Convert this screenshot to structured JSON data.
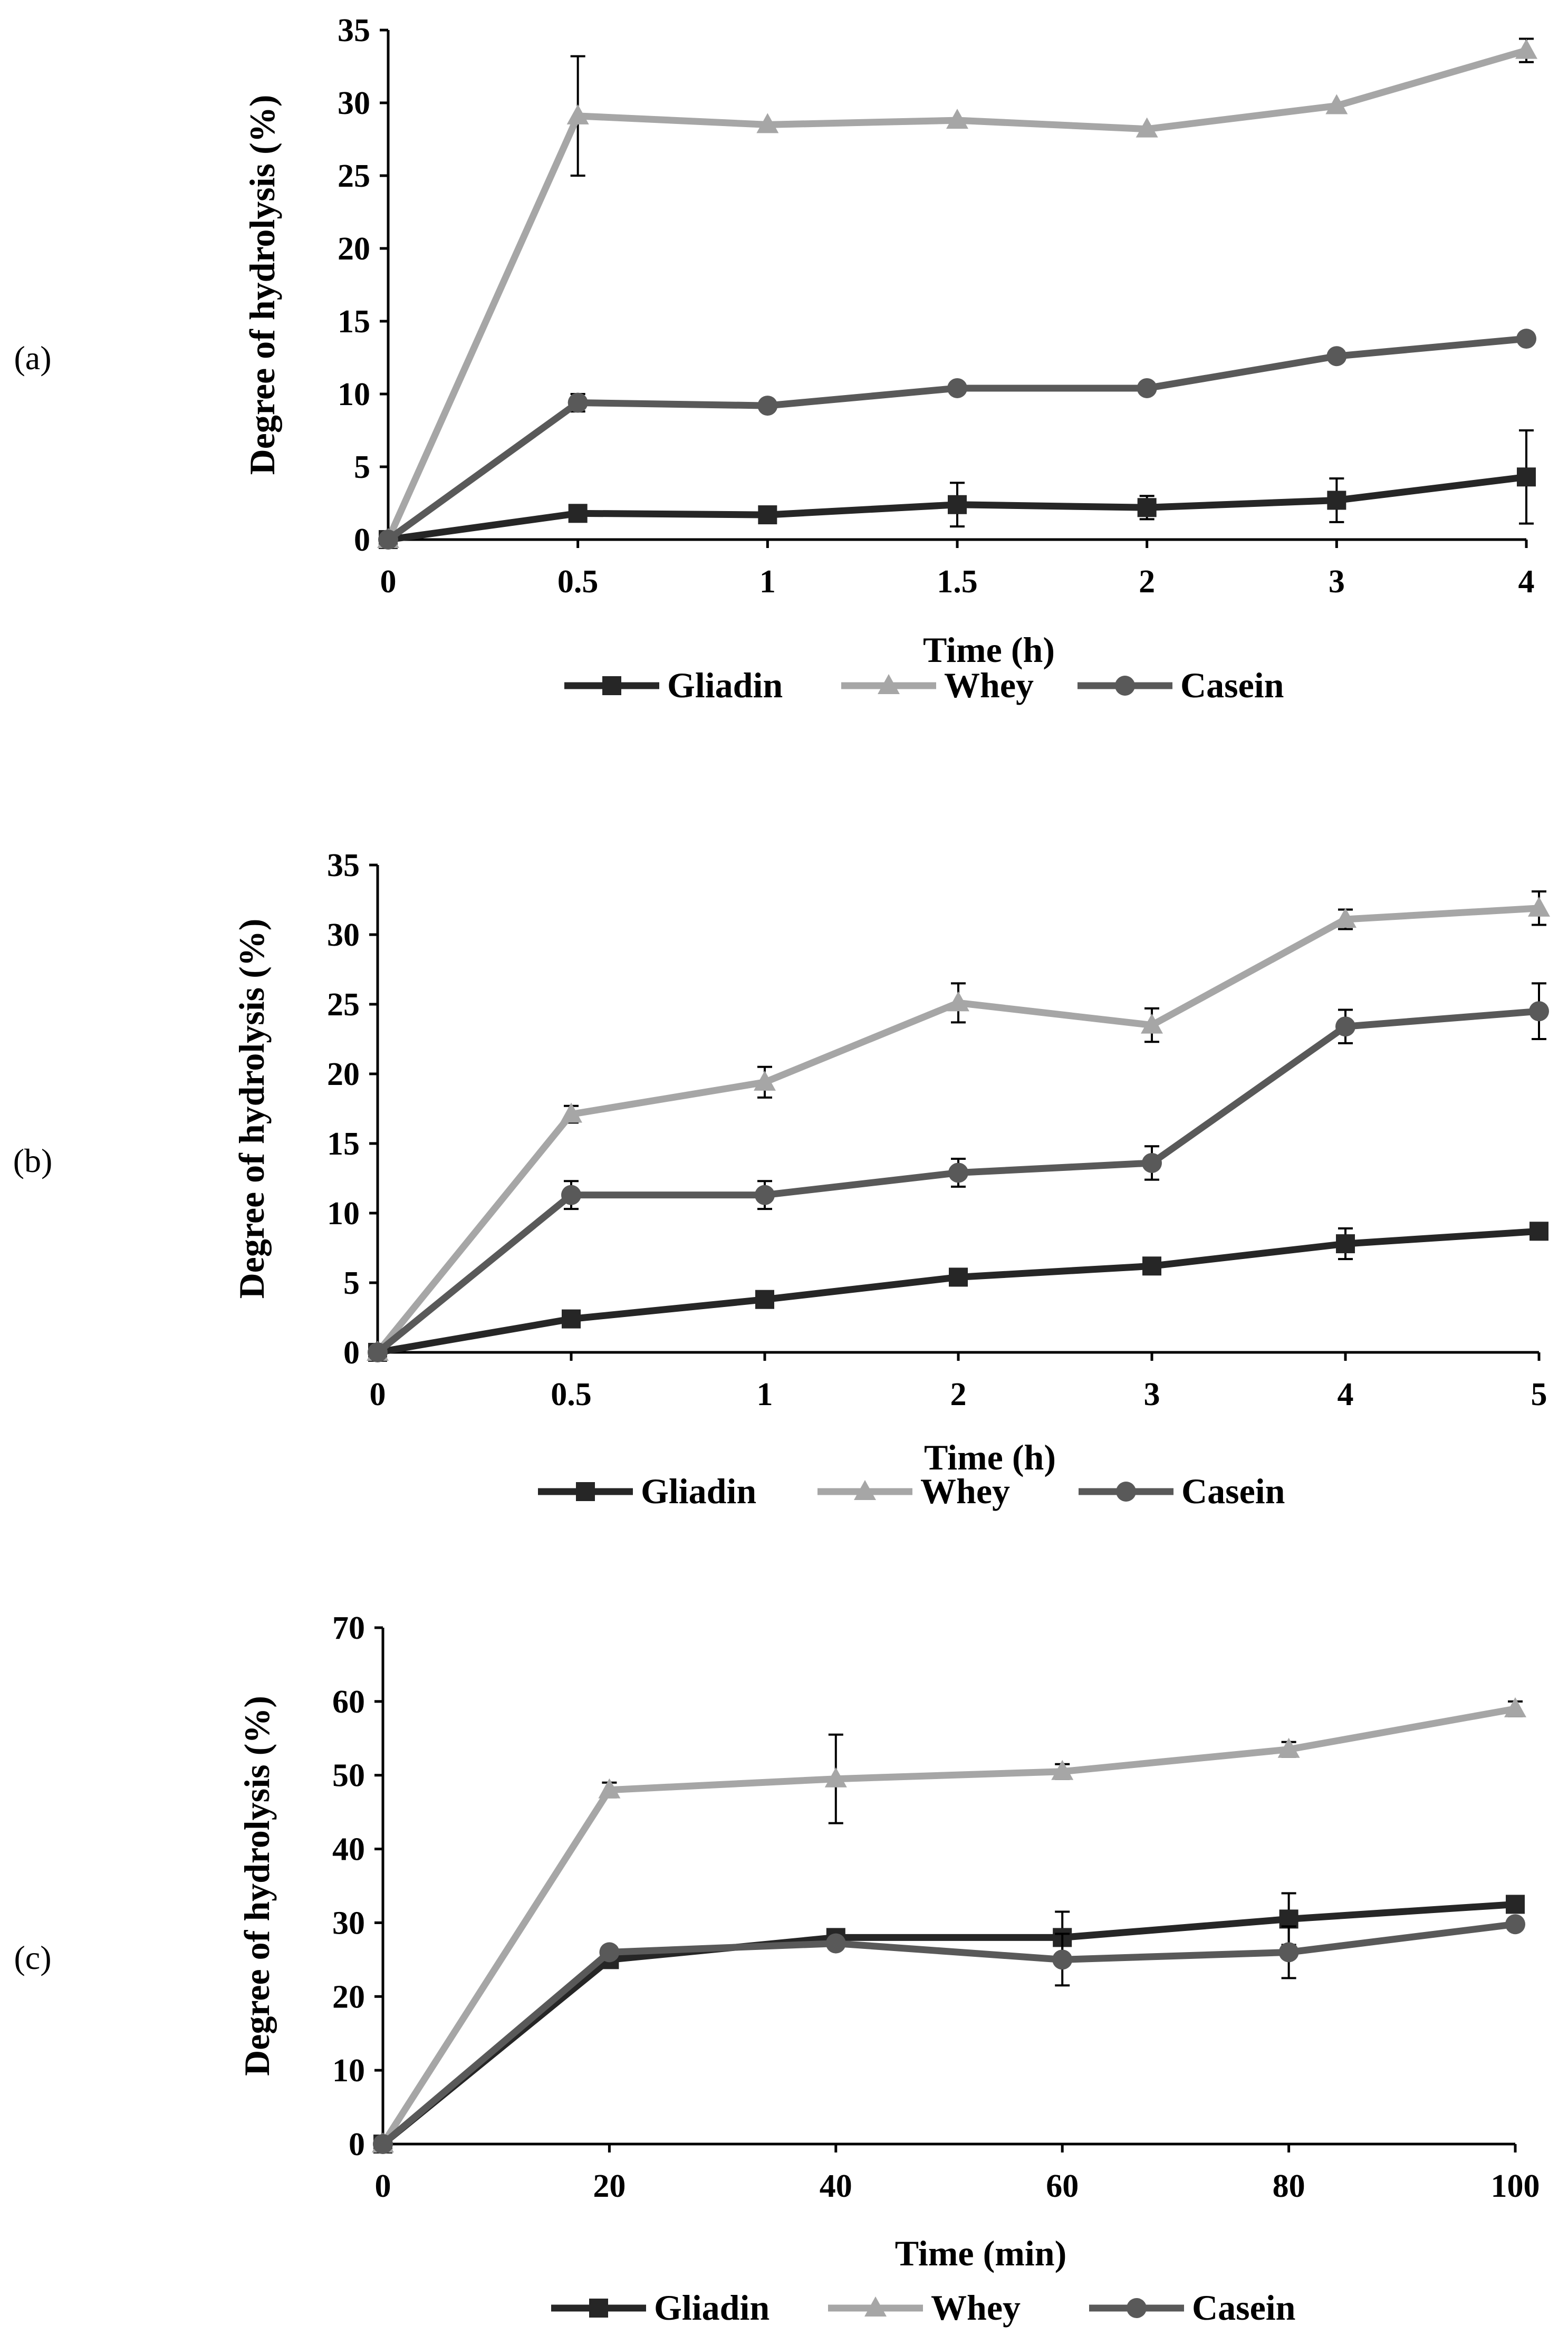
{
  "colors": {
    "gliadin": "#262626",
    "whey": "#a6a6a6",
    "casein": "#595959",
    "axis": "#000000"
  },
  "chart_data": [
    {
      "type": "line",
      "panel_label": "(a)",
      "xlabel": "Time (h)",
      "ylabel": "Degree of hydrolysis (%)",
      "categories": [
        "0",
        "0.5",
        "1",
        "1.5",
        "2",
        "3",
        "4"
      ],
      "ylim": [
        0,
        35
      ],
      "yticks": [
        0,
        5,
        10,
        15,
        20,
        25,
        30,
        35
      ],
      "grid": false,
      "legend_position": "bottom",
      "series": [
        {
          "name": "Gliadin",
          "marker": "square",
          "color_key": "gliadin",
          "values": [
            0,
            1.8,
            1.7,
            2.4,
            2.2,
            2.7,
            4.3
          ],
          "errors": [
            0,
            0,
            0,
            1.5,
            0.8,
            1.5,
            3.2
          ]
        },
        {
          "name": "Whey",
          "marker": "triangle",
          "color_key": "whey",
          "values": [
            0,
            29.1,
            28.5,
            28.8,
            28.2,
            29.8,
            33.6
          ],
          "errors": [
            0,
            4.1,
            0,
            0,
            0,
            0,
            0.8
          ]
        },
        {
          "name": "Casein",
          "marker": "circle",
          "color_key": "casein",
          "values": [
            0,
            9.4,
            9.2,
            10.4,
            10.4,
            12.6,
            13.8
          ],
          "errors": [
            0,
            0.6,
            0,
            0,
            0,
            0,
            0
          ]
        }
      ]
    },
    {
      "type": "line",
      "panel_label": "(b)",
      "xlabel": "Time (h)",
      "ylabel": "Degree of hydrolysis (%)",
      "categories": [
        "0",
        "0.5",
        "1",
        "2",
        "3",
        "4",
        "5"
      ],
      "ylim": [
        0,
        35
      ],
      "yticks": [
        0,
        5,
        10,
        15,
        20,
        25,
        30,
        35
      ],
      "grid": false,
      "legend_position": "bottom",
      "series": [
        {
          "name": "Gliadin",
          "marker": "square",
          "color_key": "gliadin",
          "values": [
            0,
            2.4,
            3.8,
            5.4,
            6.2,
            7.8,
            8.7
          ],
          "errors": [
            0,
            0,
            0.5,
            0.6,
            0.5,
            1.1,
            0.6
          ]
        },
        {
          "name": "Whey",
          "marker": "triangle",
          "color_key": "whey",
          "values": [
            0,
            17.1,
            19.4,
            25.1,
            23.5,
            31.1,
            31.9
          ],
          "errors": [
            0,
            0.6,
            1.1,
            1.4,
            1.2,
            0.7,
            1.2
          ]
        },
        {
          "name": "Casein",
          "marker": "circle",
          "color_key": "casein",
          "values": [
            0,
            11.3,
            11.3,
            12.9,
            13.6,
            23.4,
            24.5
          ],
          "errors": [
            0,
            1.0,
            1.0,
            1.0,
            1.2,
            1.2,
            2.0
          ]
        }
      ]
    },
    {
      "type": "line",
      "panel_label": "(c)",
      "xlabel": "Time (min)",
      "ylabel": "Degree of hydrolysis (%)",
      "categories": [
        "0",
        "20",
        "40",
        "60",
        "80",
        "100"
      ],
      "ylim": [
        0,
        70
      ],
      "yticks": [
        0,
        10,
        20,
        30,
        40,
        50,
        60,
        70
      ],
      "grid": false,
      "legend_position": "bottom",
      "series": [
        {
          "name": "Gliadin",
          "marker": "square",
          "color_key": "gliadin",
          "values": [
            0,
            25.0,
            28.0,
            28.0,
            30.5,
            32.5
          ],
          "errors": [
            0,
            0,
            0,
            3.5,
            3.5,
            0
          ]
        },
        {
          "name": "Whey",
          "marker": "triangle",
          "color_key": "whey",
          "values": [
            0,
            48.0,
            49.5,
            50.5,
            53.5,
            59.0
          ],
          "errors": [
            0,
            1.0,
            6.0,
            1.0,
            1.0,
            1.0
          ]
        },
        {
          "name": "Casein",
          "marker": "circle",
          "color_key": "casein",
          "values": [
            0,
            26.0,
            27.2,
            25.0,
            26.0,
            29.8
          ],
          "errors": [
            0,
            0,
            0,
            3.5,
            3.5,
            0
          ]
        }
      ]
    }
  ]
}
